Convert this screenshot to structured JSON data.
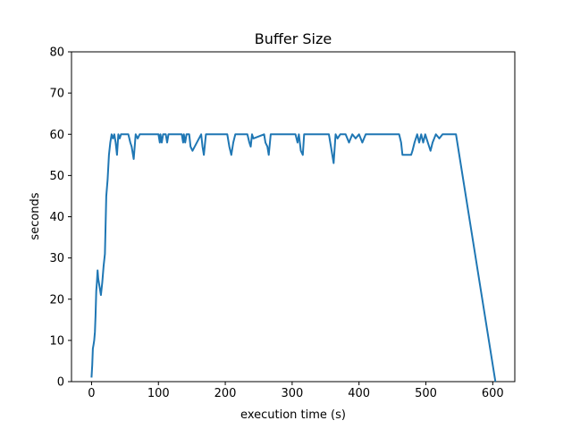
{
  "chart_data": {
    "type": "line",
    "title": "Buffer Size",
    "xlabel": "execution time (s)",
    "ylabel": "seconds",
    "xlim": [
      -30,
      633
    ],
    "ylim": [
      0,
      80
    ],
    "xticks": [
      0,
      100,
      200,
      300,
      400,
      500,
      600
    ],
    "yticks": [
      0,
      10,
      20,
      30,
      40,
      50,
      60,
      70,
      80
    ],
    "xtick_labels": [
      "0",
      "100",
      "200",
      "300",
      "400",
      "500",
      "600"
    ],
    "ytick_labels": [
      "0",
      "10",
      "20",
      "30",
      "40",
      "50",
      "60",
      "70",
      "80"
    ],
    "grid": false,
    "series": [
      {
        "color": "#1f77b4",
        "x": [
          0,
          1,
          2,
          3,
          4,
          5,
          6,
          7,
          8,
          9,
          10,
          12,
          14,
          16,
          18,
          20,
          22,
          24,
          26,
          28,
          30,
          32,
          34,
          36,
          38,
          40,
          42,
          44,
          55,
          58,
          60,
          63,
          66,
          69,
          72,
          100,
          102,
          103,
          105,
          107,
          111,
          113,
          115,
          135,
          137,
          138,
          140,
          142,
          146,
          148,
          151,
          164,
          166,
          168,
          171,
          203,
          206,
          209,
          212,
          215,
          233,
          236,
          238,
          240,
          242,
          258,
          260,
          263,
          265,
          268,
          272,
          305,
          308,
          310,
          313,
          316,
          318,
          330,
          335,
          355,
          358,
          360,
          362,
          365,
          368,
          372,
          380,
          385,
          390,
          395,
          400,
          405,
          410,
          415,
          420,
          460,
          463,
          465,
          470,
          473,
          478,
          480,
          483,
          487,
          490,
          493,
          496,
          499,
          503,
          507,
          510,
          515,
          520,
          525,
          530,
          535,
          545,
          604
        ],
        "y": [
          1,
          4,
          8,
          9,
          10,
          12,
          16,
          22,
          24,
          27,
          25,
          23,
          21,
          24,
          28,
          31,
          45,
          49,
          55,
          58,
          60,
          59,
          60,
          58,
          55,
          60,
          59,
          60,
          60,
          58,
          57,
          54,
          60,
          59,
          60,
          60,
          58,
          60,
          58,
          60,
          60,
          58,
          60,
          60,
          58,
          60,
          58,
          60,
          60,
          57,
          56,
          60,
          57,
          55,
          60,
          60,
          57,
          55,
          58,
          60,
          60,
          58,
          57,
          60,
          59,
          60,
          58,
          57,
          55,
          60,
          60,
          60,
          58,
          60,
          56,
          55,
          60,
          60,
          60,
          60,
          57,
          55,
          53,
          60,
          59,
          60,
          60,
          58,
          60,
          59,
          60,
          58,
          60,
          60,
          60,
          60,
          58,
          55,
          55,
          55,
          55,
          56,
          58,
          60,
          58,
          60,
          58,
          60,
          58,
          56,
          58,
          60,
          59,
          60,
          60,
          60,
          60,
          0
        ]
      }
    ]
  }
}
